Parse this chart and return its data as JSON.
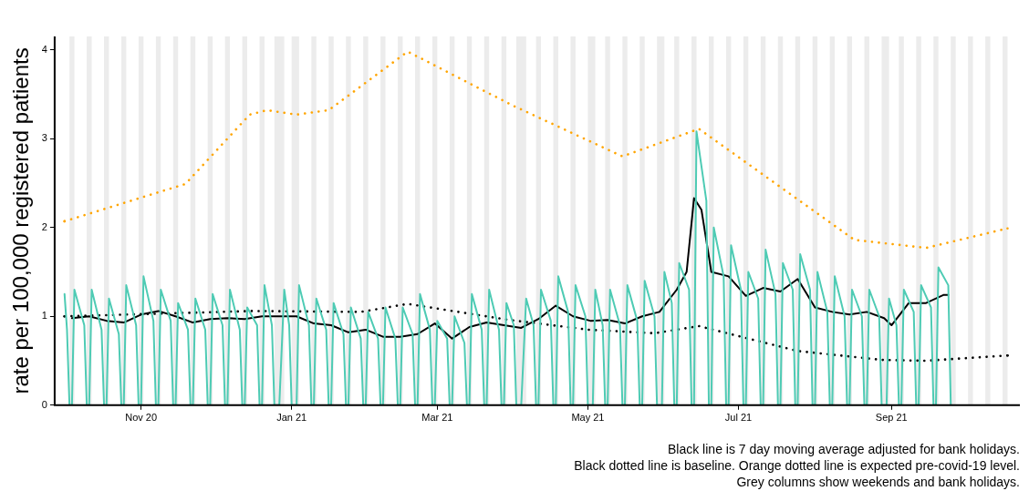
{
  "chart_data": {
    "type": "line",
    "ylabel": "rate per 100,000 registered patients",
    "xlim": [
      "2020-09-27",
      "2021-10-23"
    ],
    "xticks": [
      {
        "value": "2020-11-01",
        "label": "Nov 20"
      },
      {
        "value": "2021-01-01",
        "label": "Jan 21"
      },
      {
        "value": "2021-03-01",
        "label": "Mar 21"
      },
      {
        "value": "2021-05-01",
        "label": "May 21"
      },
      {
        "value": "2021-07-01",
        "label": "Jul 21"
      },
      {
        "value": "2021-09-01",
        "label": "Sep 21"
      }
    ],
    "ylim": [
      0,
      4.15
    ],
    "yticks": [
      0,
      1,
      2,
      3,
      4
    ],
    "grid": false,
    "legend": false,
    "marker": "none",
    "series": [
      {
        "color": "#4ecbb4",
        "line_style": "solid",
        "x": [
          "2020-10-01",
          "2020-10-02",
          "2020-10-03",
          "2020-10-04",
          "2020-10-05",
          "2020-10-09",
          "2020-10-10",
          "2020-10-11",
          "2020-10-12",
          "2020-10-16",
          "2020-10-17",
          "2020-10-18",
          "2020-10-19",
          "2020-10-23",
          "2020-10-24",
          "2020-10-25",
          "2020-10-26",
          "2020-10-30",
          "2020-10-31",
          "2020-11-01",
          "2020-11-02",
          "2020-11-06",
          "2020-11-07",
          "2020-11-08",
          "2020-11-09",
          "2020-11-13",
          "2020-11-14",
          "2020-11-15",
          "2020-11-16",
          "2020-11-20",
          "2020-11-21",
          "2020-11-22",
          "2020-11-23",
          "2020-11-27",
          "2020-11-28",
          "2020-11-29",
          "2020-11-30",
          "2020-12-04",
          "2020-12-05",
          "2020-12-06",
          "2020-12-07",
          "2020-12-11",
          "2020-12-12",
          "2020-12-13",
          "2020-12-14",
          "2020-12-18",
          "2020-12-19",
          "2020-12-20",
          "2020-12-21",
          "2020-12-24",
          "2020-12-25",
          "2020-12-27",
          "2020-12-29",
          "2020-12-31",
          "2021-01-01",
          "2021-01-03",
          "2021-01-04",
          "2021-01-08",
          "2021-01-09",
          "2021-01-10",
          "2021-01-11",
          "2021-01-15",
          "2021-01-16",
          "2021-01-17",
          "2021-01-18",
          "2021-01-22",
          "2021-01-23",
          "2021-01-24",
          "2021-01-25",
          "2021-01-29",
          "2021-01-30",
          "2021-01-31",
          "2021-02-01",
          "2021-02-05",
          "2021-02-06",
          "2021-02-07",
          "2021-02-08",
          "2021-02-12",
          "2021-02-13",
          "2021-02-14",
          "2021-02-15",
          "2021-02-19",
          "2021-02-20",
          "2021-02-21",
          "2021-02-22",
          "2021-02-26",
          "2021-02-27",
          "2021-02-28",
          "2021-03-01",
          "2021-03-05",
          "2021-03-06",
          "2021-03-07",
          "2021-03-08",
          "2021-03-12",
          "2021-03-13",
          "2021-03-14",
          "2021-03-15",
          "2021-03-19",
          "2021-03-20",
          "2021-03-21",
          "2021-03-22",
          "2021-03-26",
          "2021-03-27",
          "2021-03-28",
          "2021-03-29",
          "2021-04-01",
          "2021-04-02",
          "2021-04-04",
          "2021-04-06",
          "2021-04-09",
          "2021-04-10",
          "2021-04-11",
          "2021-04-12",
          "2021-04-16",
          "2021-04-17",
          "2021-04-18",
          "2021-04-19",
          "2021-04-23",
          "2021-04-24",
          "2021-04-25",
          "2021-04-26",
          "2021-04-30",
          "2021-05-01",
          "2021-05-03",
          "2021-05-04",
          "2021-05-07",
          "2021-05-08",
          "2021-05-09",
          "2021-05-10",
          "2021-05-14",
          "2021-05-15",
          "2021-05-16",
          "2021-05-17",
          "2021-05-21",
          "2021-05-22",
          "2021-05-23",
          "2021-05-24",
          "2021-05-28",
          "2021-05-29",
          "2021-05-31",
          "2021-06-01",
          "2021-06-04",
          "2021-06-05",
          "2021-06-06",
          "2021-06-07",
          "2021-06-11",
          "2021-06-12",
          "2021-06-13",
          "2021-06-14",
          "2021-06-18",
          "2021-06-19",
          "2021-06-20",
          "2021-06-21",
          "2021-06-25",
          "2021-06-26",
          "2021-06-27",
          "2021-06-28",
          "2021-07-02",
          "2021-07-03",
          "2021-07-04",
          "2021-07-05",
          "2021-07-09",
          "2021-07-10",
          "2021-07-11",
          "2021-07-12",
          "2021-07-16",
          "2021-07-17",
          "2021-07-18",
          "2021-07-19",
          "2021-07-23",
          "2021-07-24",
          "2021-07-25",
          "2021-07-26",
          "2021-07-30",
          "2021-07-31",
          "2021-08-01",
          "2021-08-02",
          "2021-08-06",
          "2021-08-07",
          "2021-08-08",
          "2021-08-09",
          "2021-08-13",
          "2021-08-14",
          "2021-08-15",
          "2021-08-16",
          "2021-08-20",
          "2021-08-21",
          "2021-08-22",
          "2021-08-23",
          "2021-08-27",
          "2021-08-28",
          "2021-08-30",
          "2021-08-31",
          "2021-09-03",
          "2021-09-04",
          "2021-09-05",
          "2021-09-06",
          "2021-09-10",
          "2021-09-11",
          "2021-09-12",
          "2021-09-13",
          "2021-09-17",
          "2021-09-18",
          "2021-09-19",
          "2021-09-20",
          "2021-09-24",
          "2021-09-25"
        ],
        "values": [
          1.25,
          0.85,
          0,
          0,
          1.3,
          0.9,
          0,
          0,
          1.3,
          0.85,
          0,
          0,
          1.2,
          0.8,
          0,
          0,
          1.35,
          0.9,
          0,
          0,
          1.45,
          0.95,
          0,
          0,
          1.3,
          0.95,
          0,
          0,
          1.15,
          0.85,
          0,
          0,
          1.2,
          0.85,
          0,
          0,
          1.25,
          0.9,
          0,
          0,
          1.3,
          0.85,
          0,
          0,
          1.1,
          0.9,
          0,
          0,
          1.35,
          0.9,
          0,
          0,
          1.3,
          0.9,
          0,
          0,
          1.35,
          0.9,
          0,
          0,
          1.2,
          0.85,
          0,
          0,
          1.15,
          0.8,
          0,
          0,
          1.1,
          0.75,
          0,
          0,
          1.05,
          0.75,
          0,
          0,
          1.1,
          0.75,
          0,
          0,
          1.1,
          0.8,
          0,
          0,
          1.25,
          0.85,
          0,
          0,
          0.95,
          0.75,
          0,
          0,
          1.0,
          0.7,
          0,
          0,
          1.25,
          0.85,
          0,
          0,
          1.3,
          0.85,
          0,
          0,
          1.15,
          0.9,
          0,
          0,
          1.2,
          0.9,
          0,
          0,
          1.3,
          0.95,
          0,
          0,
          1.45,
          1.05,
          0,
          0,
          1.35,
          1.0,
          0,
          0,
          1.3,
          0.9,
          0,
          0,
          1.3,
          0.9,
          0,
          0,
          1.35,
          0.95,
          0,
          0,
          1.4,
          1.0,
          0,
          0,
          1.5,
          1.15,
          0,
          0,
          1.6,
          1.3,
          0,
          0,
          3.08,
          2.3,
          0,
          0,
          2.0,
          1.45,
          0,
          0,
          1.8,
          1.3,
          0,
          0,
          1.5,
          1.2,
          0,
          0,
          1.75,
          1.25,
          0,
          0,
          1.6,
          1.3,
          0,
          0,
          1.7,
          1.3,
          0,
          0,
          1.5,
          1.05,
          0,
          0,
          1.45,
          1.0,
          0,
          0,
          1.3,
          1.0,
          0,
          0,
          1.3,
          1.0,
          0,
          0,
          1.2,
          0.9,
          0,
          0,
          1.3,
          1.05,
          0,
          0,
          1.35,
          1.1,
          0,
          0,
          1.55,
          1.35,
          0
        ]
      },
      {
        "color": "#000000",
        "line_style": "solid",
        "x": [
          "2020-10-04",
          "2020-10-11",
          "2020-10-18",
          "2020-10-25",
          "2020-11-01",
          "2020-11-08",
          "2020-11-15",
          "2020-11-22",
          "2020-11-29",
          "2020-12-06",
          "2020-12-13",
          "2020-12-20",
          "2020-12-27",
          "2021-01-03",
          "2021-01-10",
          "2021-01-17",
          "2021-01-24",
          "2021-01-31",
          "2021-02-07",
          "2021-02-14",
          "2021-02-21",
          "2021-02-28",
          "2021-03-07",
          "2021-03-14",
          "2021-03-21",
          "2021-03-28",
          "2021-04-04",
          "2021-04-11",
          "2021-04-18",
          "2021-04-25",
          "2021-05-02",
          "2021-05-09",
          "2021-05-16",
          "2021-05-23",
          "2021-05-30",
          "2021-06-06",
          "2021-06-10",
          "2021-06-13",
          "2021-06-16",
          "2021-06-20",
          "2021-06-27",
          "2021-07-04",
          "2021-07-11",
          "2021-07-18",
          "2021-07-25",
          "2021-08-01",
          "2021-08-08",
          "2021-08-15",
          "2021-08-22",
          "2021-08-29",
          "2021-09-01",
          "2021-09-08",
          "2021-09-15",
          "2021-09-22",
          "2021-09-24"
        ],
        "values": [
          0.98,
          1.0,
          0.95,
          0.93,
          1.02,
          1.06,
          1.0,
          0.93,
          0.97,
          0.98,
          0.97,
          1.0,
          1.0,
          1.0,
          0.92,
          0.9,
          0.82,
          0.85,
          0.77,
          0.77,
          0.8,
          0.92,
          0.75,
          0.88,
          0.93,
          0.9,
          0.87,
          0.97,
          1.12,
          1.0,
          0.95,
          0.96,
          0.92,
          1.0,
          1.05,
          1.3,
          1.5,
          2.33,
          2.2,
          1.5,
          1.45,
          1.23,
          1.32,
          1.28,
          1.42,
          1.1,
          1.05,
          1.02,
          1.05,
          0.98,
          0.9,
          1.15,
          1.15,
          1.24,
          1.24
        ]
      },
      {
        "color": "#000000",
        "line_style": "dotted",
        "x": [
          "2020-10-01",
          "2020-12-16",
          "2021-01-29",
          "2021-02-17",
          "2021-03-30",
          "2021-05-01",
          "2021-05-28",
          "2021-06-15",
          "2021-07-25",
          "2021-08-28",
          "2021-09-15",
          "2021-10-18"
        ],
        "values": [
          1.0,
          1.06,
          1.05,
          1.14,
          0.96,
          0.85,
          0.81,
          0.89,
          0.61,
          0.51,
          0.5,
          0.56
        ]
      },
      {
        "color": "#ffa500",
        "line_style": "dotted",
        "x": [
          "2020-10-01",
          "2020-11-19",
          "2020-12-15",
          "2020-12-22",
          "2021-01-03",
          "2021-01-16",
          "2021-02-17",
          "2021-03-31",
          "2021-05-15",
          "2021-06-15",
          "2021-08-17",
          "2021-09-15",
          "2021-10-18"
        ],
        "values": [
          2.07,
          2.49,
          3.27,
          3.32,
          3.27,
          3.32,
          3.98,
          3.38,
          2.8,
          3.11,
          1.86,
          1.77,
          1.99
        ]
      }
    ],
    "bands": [
      {
        "axis": "x",
        "from": "2020-10-03",
        "to": "2020-10-05"
      },
      {
        "axis": "x",
        "from": "2020-10-10",
        "to": "2020-10-12"
      },
      {
        "axis": "x",
        "from": "2020-10-17",
        "to": "2020-10-19"
      },
      {
        "axis": "x",
        "from": "2020-10-24",
        "to": "2020-10-26"
      },
      {
        "axis": "x",
        "from": "2020-10-31",
        "to": "2020-11-02"
      },
      {
        "axis": "x",
        "from": "2020-11-07",
        "to": "2020-11-09"
      },
      {
        "axis": "x",
        "from": "2020-11-14",
        "to": "2020-11-16"
      },
      {
        "axis": "x",
        "from": "2020-11-21",
        "to": "2020-11-23"
      },
      {
        "axis": "x",
        "from": "2020-11-28",
        "to": "2020-11-30"
      },
      {
        "axis": "x",
        "from": "2020-12-05",
        "to": "2020-12-07"
      },
      {
        "axis": "x",
        "from": "2020-12-12",
        "to": "2020-12-14"
      },
      {
        "axis": "x",
        "from": "2020-12-19",
        "to": "2020-12-21"
      },
      {
        "axis": "x",
        "from": "2020-12-25",
        "to": "2020-12-29"
      },
      {
        "axis": "x",
        "from": "2021-01-01",
        "to": "2021-01-04"
      },
      {
        "axis": "x",
        "from": "2021-01-09",
        "to": "2021-01-11"
      },
      {
        "axis": "x",
        "from": "2021-01-16",
        "to": "2021-01-18"
      },
      {
        "axis": "x",
        "from": "2021-01-23",
        "to": "2021-01-25"
      },
      {
        "axis": "x",
        "from": "2021-01-30",
        "to": "2021-02-01"
      },
      {
        "axis": "x",
        "from": "2021-02-06",
        "to": "2021-02-08"
      },
      {
        "axis": "x",
        "from": "2021-02-13",
        "to": "2021-02-15"
      },
      {
        "axis": "x",
        "from": "2021-02-20",
        "to": "2021-02-22"
      },
      {
        "axis": "x",
        "from": "2021-02-27",
        "to": "2021-03-01"
      },
      {
        "axis": "x",
        "from": "2021-03-06",
        "to": "2021-03-08"
      },
      {
        "axis": "x",
        "from": "2021-03-13",
        "to": "2021-03-15"
      },
      {
        "axis": "x",
        "from": "2021-03-20",
        "to": "2021-03-22"
      },
      {
        "axis": "x",
        "from": "2021-03-27",
        "to": "2021-03-29"
      },
      {
        "axis": "x",
        "from": "2021-04-02",
        "to": "2021-04-06"
      },
      {
        "axis": "x",
        "from": "2021-04-10",
        "to": "2021-04-12"
      },
      {
        "axis": "x",
        "from": "2021-04-17",
        "to": "2021-04-19"
      },
      {
        "axis": "x",
        "from": "2021-04-24",
        "to": "2021-04-26"
      },
      {
        "axis": "x",
        "from": "2021-05-01",
        "to": "2021-05-04"
      },
      {
        "axis": "x",
        "from": "2021-05-08",
        "to": "2021-05-10"
      },
      {
        "axis": "x",
        "from": "2021-05-15",
        "to": "2021-05-17"
      },
      {
        "axis": "x",
        "from": "2021-05-22",
        "to": "2021-05-24"
      },
      {
        "axis": "x",
        "from": "2021-05-29",
        "to": "2021-06-01"
      },
      {
        "axis": "x",
        "from": "2021-06-05",
        "to": "2021-06-07"
      },
      {
        "axis": "x",
        "from": "2021-06-12",
        "to": "2021-06-14"
      },
      {
        "axis": "x",
        "from": "2021-06-19",
        "to": "2021-06-21"
      },
      {
        "axis": "x",
        "from": "2021-06-26",
        "to": "2021-06-28"
      },
      {
        "axis": "x",
        "from": "2021-07-03",
        "to": "2021-07-05"
      },
      {
        "axis": "x",
        "from": "2021-07-10",
        "to": "2021-07-12"
      },
      {
        "axis": "x",
        "from": "2021-07-17",
        "to": "2021-07-19"
      },
      {
        "axis": "x",
        "from": "2021-07-24",
        "to": "2021-07-26"
      },
      {
        "axis": "x",
        "from": "2021-07-31",
        "to": "2021-08-02"
      },
      {
        "axis": "x",
        "from": "2021-08-07",
        "to": "2021-08-09"
      },
      {
        "axis": "x",
        "from": "2021-08-14",
        "to": "2021-08-16"
      },
      {
        "axis": "x",
        "from": "2021-08-21",
        "to": "2021-08-23"
      },
      {
        "axis": "x",
        "from": "2021-08-28",
        "to": "2021-08-31"
      },
      {
        "axis": "x",
        "from": "2021-09-04",
        "to": "2021-09-06"
      },
      {
        "axis": "x",
        "from": "2021-09-11",
        "to": "2021-09-13"
      },
      {
        "axis": "x",
        "from": "2021-09-18",
        "to": "2021-09-20"
      },
      {
        "axis": "x",
        "from": "2021-09-25",
        "to": "2021-09-27"
      },
      {
        "axis": "x",
        "from": "2021-10-02",
        "to": "2021-10-04"
      },
      {
        "axis": "x",
        "from": "2021-10-09",
        "to": "2021-10-11"
      },
      {
        "axis": "x",
        "from": "2021-10-16",
        "to": "2021-10-18"
      }
    ],
    "annotations": [
      "Black line is 7 day moving average adjusted for bank holidays.",
      "Black dotted line is baseline. Orange dotted line is expected pre-covid-19 level.",
      "Grey columns show weekends and bank holidays."
    ]
  }
}
